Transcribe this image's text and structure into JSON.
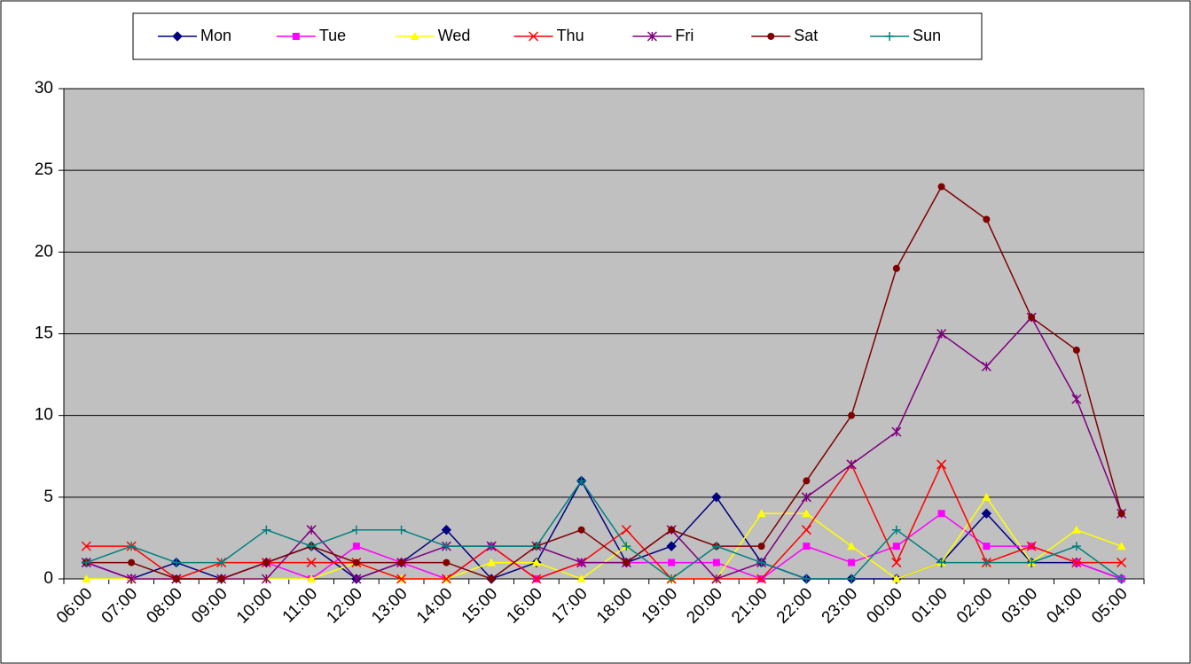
{
  "chart_data": {
    "type": "line",
    "categories": [
      "06:00",
      "07:00",
      "08:00",
      "09:00",
      "10:00",
      "11:00",
      "12:00",
      "13:00",
      "14:00",
      "15:00",
      "16:00",
      "17:00",
      "18:00",
      "19:00",
      "20:00",
      "21:00",
      "22:00",
      "23:00",
      "00:00",
      "01:00",
      "02:00",
      "03:00",
      "04:00",
      "05:00"
    ],
    "series": [
      {
        "name": "Mon",
        "color": "#000080",
        "marker": "diamond",
        "values": [
          1,
          0,
          1,
          0,
          1,
          2,
          0,
          1,
          3,
          0,
          1,
          6,
          1,
          2,
          5,
          1,
          0,
          0,
          0,
          1,
          4,
          1,
          1,
          0
        ]
      },
      {
        "name": "Tue",
        "color": "#ff00ff",
        "marker": "square",
        "values": [
          1,
          0,
          0,
          0,
          1,
          0,
          2,
          1,
          0,
          2,
          0,
          1,
          1,
          1,
          1,
          0,
          2,
          1,
          2,
          4,
          2,
          2,
          1,
          0
        ]
      },
      {
        "name": "Wed",
        "color": "#ffff00",
        "marker": "triangle",
        "values": [
          0,
          0,
          0,
          0,
          0,
          0,
          1,
          0,
          0,
          1,
          1,
          0,
          2,
          0,
          0,
          4,
          4,
          2,
          0,
          1,
          5,
          1,
          3,
          2
        ]
      },
      {
        "name": "Thu",
        "color": "#ff0000",
        "marker": "x",
        "values": [
          2,
          2,
          0,
          1,
          1,
          1,
          1,
          0,
          0,
          2,
          0,
          1,
          3,
          0,
          0,
          0,
          3,
          7,
          1,
          7,
          1,
          2,
          1,
          1
        ]
      },
      {
        "name": "Fri",
        "color": "#800080",
        "marker": "star",
        "values": [
          1,
          0,
          0,
          0,
          0,
          3,
          0,
          1,
          2,
          2,
          2,
          1,
          1,
          3,
          0,
          1,
          5,
          7,
          9,
          15,
          13,
          16,
          11,
          4
        ]
      },
      {
        "name": "Sat",
        "color": "#800000",
        "marker": "circle",
        "values": [
          1,
          1,
          0,
          0,
          1,
          2,
          1,
          1,
          1,
          0,
          2,
          3,
          1,
          3,
          2,
          2,
          6,
          10,
          19,
          24,
          22,
          16,
          14,
          4
        ]
      },
      {
        "name": "Sun",
        "color": "#008080",
        "marker": "plus",
        "values": [
          1,
          2,
          1,
          1,
          3,
          2,
          3,
          3,
          2,
          2,
          2,
          6,
          2,
          0,
          2,
          1,
          0,
          0,
          3,
          1,
          1,
          1,
          2,
          0
        ]
      }
    ],
    "ylim": [
      0,
      30
    ],
    "yticks": [
      0,
      5,
      10,
      15,
      20,
      25,
      30
    ],
    "grid": true,
    "legend": "top",
    "plot_background": "#c0c0c0"
  }
}
